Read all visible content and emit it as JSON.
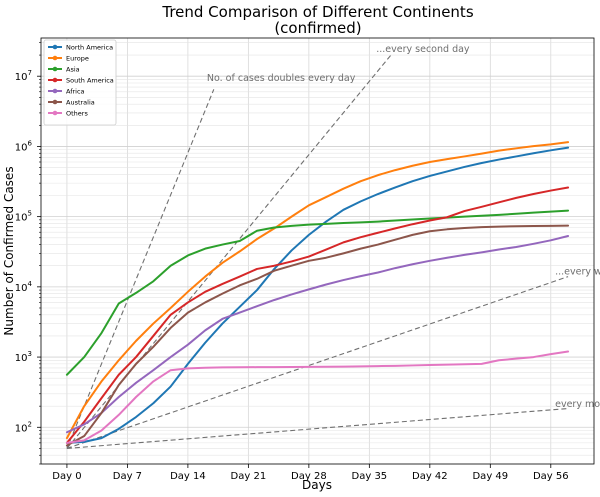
{
  "chart_data": {
    "type": "line",
    "title": "Trend Comparison of Different Continents",
    "subtitle": "(confirmed)",
    "xlabel": "Days",
    "ylabel": "Number of Confirmed Cases",
    "y_scale": "log",
    "xlim": [
      -3,
      61
    ],
    "ylim": [
      30,
      35000000
    ],
    "grid": true,
    "legend_position": "top-left",
    "x_ticks": [
      {
        "value": 0,
        "label": "Day 0"
      },
      {
        "value": 7,
        "label": "Day 7"
      },
      {
        "value": 14,
        "label": "Day 14"
      },
      {
        "value": 21,
        "label": "Day 21"
      },
      {
        "value": 28,
        "label": "Day 28"
      },
      {
        "value": 35,
        "label": "Day 35"
      },
      {
        "value": 42,
        "label": "Day 42"
      },
      {
        "value": 49,
        "label": "Day 49"
      },
      {
        "value": 56,
        "label": "Day 56"
      }
    ],
    "y_ticks": [
      {
        "value": 100,
        "base": "10",
        "exp": "2"
      },
      {
        "value": 1000,
        "base": "10",
        "exp": "3"
      },
      {
        "value": 10000,
        "base": "10",
        "exp": "4"
      },
      {
        "value": 100000,
        "base": "10",
        "exp": "5"
      },
      {
        "value": 1000000,
        "base": "10",
        "exp": "6"
      },
      {
        "value": 10000000,
        "base": "10",
        "exp": "7"
      }
    ],
    "reference_lines": [
      {
        "label": "No. of cases doubles every day",
        "color": "#707070",
        "points": [
          [
            0,
            50
          ],
          [
            17,
            6500000
          ]
        ],
        "label_at": [
          16.2,
          8500000
        ]
      },
      {
        "label": "...every second day",
        "color": "#707070",
        "points": [
          [
            0,
            50
          ],
          [
            37.5,
            20000000
          ]
        ],
        "label_at": [
          35.8,
          22000000
        ]
      },
      {
        "label": "...every week",
        "color": "#707070",
        "points": [
          [
            0,
            50
          ],
          [
            58,
            14000
          ]
        ],
        "label_at": [
          56.5,
          15000
        ]
      },
      {
        "label": "every month",
        "color": "#707070",
        "points": [
          [
            0,
            50
          ],
          [
            58,
            185
          ]
        ],
        "label_at": [
          56.5,
          195
        ]
      }
    ],
    "series": [
      {
        "name": "North America",
        "color": "#1f77b4",
        "x": [
          0,
          2,
          4,
          6,
          8,
          10,
          12,
          14,
          16,
          18,
          20,
          22,
          24,
          26,
          28,
          30,
          32,
          34,
          36,
          38,
          40,
          42,
          44,
          46,
          48,
          50,
          52,
          54,
          56,
          58
        ],
        "y": [
          60,
          62,
          70,
          95,
          140,
          220,
          380,
          800,
          1600,
          3000,
          5200,
          9000,
          18000,
          33000,
          55000,
          85000,
          125000,
          165000,
          210000,
          260000,
          320000,
          380000,
          440000,
          510000,
          580000,
          650000,
          720000,
          800000,
          880000,
          960000
        ]
      },
      {
        "name": "Europe",
        "color": "#ff7f0e",
        "x": [
          0,
          2,
          4,
          6,
          8,
          10,
          12,
          14,
          16,
          18,
          20,
          22,
          24,
          26,
          28,
          30,
          32,
          34,
          36,
          38,
          40,
          42,
          44,
          46,
          48,
          50,
          52,
          54,
          56,
          58
        ],
        "y": [
          70,
          200,
          450,
          900,
          1700,
          3000,
          5000,
          8500,
          14000,
          22000,
          32000,
          48000,
          68000,
          100000,
          145000,
          190000,
          250000,
          320000,
          390000,
          460000,
          530000,
          600000,
          660000,
          720000,
          790000,
          870000,
          940000,
          1010000,
          1070000,
          1150000
        ]
      },
      {
        "name": "Asia",
        "color": "#2ca02c",
        "x": [
          0,
          2,
          4,
          6,
          8,
          10,
          12,
          14,
          16,
          18,
          20,
          22,
          24,
          26,
          28,
          30,
          32,
          34,
          36,
          38,
          40,
          42,
          44,
          46,
          48,
          50,
          52,
          54,
          56,
          58
        ],
        "y": [
          560,
          1000,
          2200,
          5800,
          8200,
          12000,
          20000,
          28000,
          35000,
          40000,
          45000,
          63000,
          70000,
          74000,
          77000,
          79000,
          81000,
          83000,
          85000,
          88000,
          91000,
          94000,
          97000,
          100000,
          103000,
          106000,
          110000,
          114000,
          118000,
          122000
        ]
      },
      {
        "name": "South America",
        "color": "#d62728",
        "x": [
          0,
          2,
          4,
          6,
          8,
          10,
          12,
          14,
          16,
          18,
          20,
          22,
          24,
          26,
          28,
          30,
          32,
          34,
          36,
          38,
          40,
          42,
          44,
          46,
          48,
          50,
          52,
          54,
          56,
          58
        ],
        "y": [
          60,
          120,
          260,
          560,
          1000,
          2000,
          4000,
          6000,
          8500,
          11000,
          14000,
          18000,
          20000,
          23000,
          27000,
          34000,
          43000,
          51000,
          59000,
          68000,
          78000,
          88000,
          98000,
          120000,
          138000,
          160000,
          185000,
          210000,
          235000,
          260000
        ]
      },
      {
        "name": "Africa",
        "color": "#9467bd",
        "x": [
          0,
          2,
          4,
          6,
          8,
          10,
          12,
          14,
          16,
          18,
          20,
          22,
          24,
          26,
          28,
          30,
          32,
          34,
          36,
          38,
          40,
          42,
          44,
          46,
          48,
          50,
          52,
          54,
          56,
          58
        ],
        "y": [
          85,
          110,
          160,
          270,
          430,
          650,
          1000,
          1500,
          2400,
          3500,
          4300,
          5300,
          6500,
          7800,
          9200,
          10800,
          12500,
          14200,
          16000,
          18500,
          21000,
          23500,
          26000,
          28500,
          31000,
          34000,
          37000,
          41000,
          46000,
          53000
        ]
      },
      {
        "name": "Australia",
        "color": "#8c564b",
        "x": [
          0,
          2,
          4,
          6,
          8,
          10,
          12,
          14,
          16,
          18,
          20,
          22,
          24,
          26,
          28,
          30,
          32,
          34,
          36,
          38,
          40,
          42,
          44,
          46,
          48,
          50,
          52,
          54,
          56,
          58
        ],
        "y": [
          55,
          75,
          160,
          400,
          800,
          1400,
          2600,
          4300,
          6000,
          8000,
          10500,
          13000,
          17000,
          20000,
          23500,
          26000,
          30000,
          35000,
          40000,
          47000,
          55000,
          62000,
          66000,
          69000,
          71000,
          72000,
          73000,
          73500,
          74000,
          74500
        ]
      },
      {
        "name": "Others",
        "color": "#e377c2",
        "x": [
          0,
          2,
          4,
          6,
          8,
          10,
          12,
          14,
          16,
          18,
          20,
          22,
          24,
          26,
          28,
          30,
          32,
          34,
          36,
          38,
          40,
          42,
          44,
          46,
          48,
          50,
          52,
          54,
          56,
          58
        ],
        "y": [
          60,
          65,
          90,
          150,
          270,
          450,
          650,
          690,
          705,
          712,
          715,
          718,
          720,
          722,
          724,
          728,
          732,
          738,
          744,
          750,
          760,
          770,
          780,
          790,
          800,
          900,
          950,
          1000,
          1100,
          1200
        ]
      }
    ]
  }
}
